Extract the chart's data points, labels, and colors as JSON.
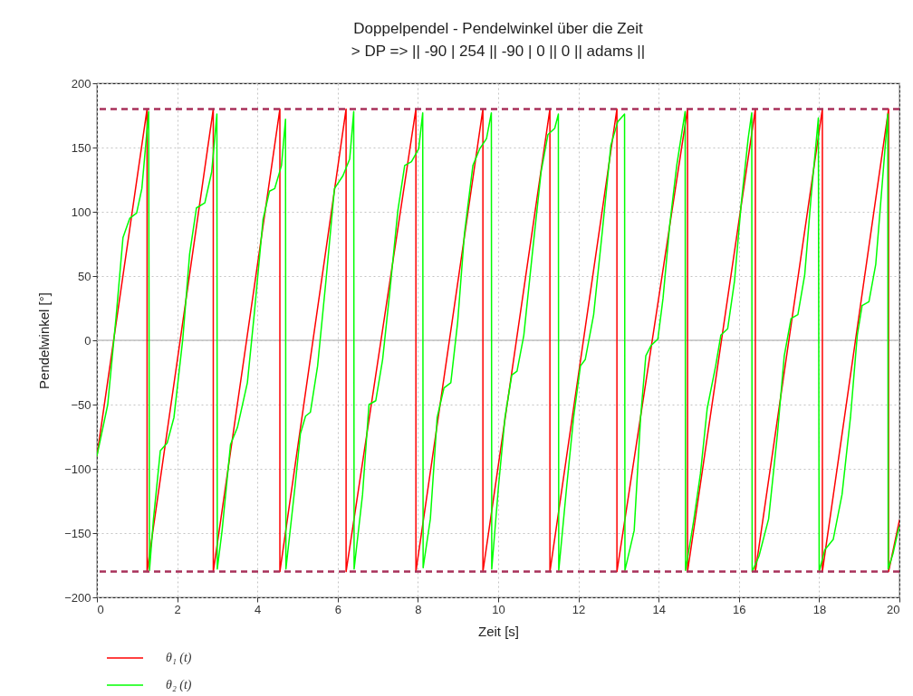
{
  "chart_data": {
    "type": "line",
    "title": "Doppelpendel - Pendelwinkel über die Zeit",
    "subtitle": "> DP => || -90 | 254 || -90 | 0 || 0 || adams ||",
    "xlabel": "Zeit [s]",
    "ylabel": "Pendelwinkel [°]",
    "xlim": [
      0,
      20
    ],
    "xticks": [
      0,
      2,
      4,
      6,
      8,
      10,
      12,
      14,
      16,
      18,
      20
    ],
    "ylim": [
      -200,
      200
    ],
    "yticks": [
      -200,
      -150,
      -100,
      -50,
      0,
      50,
      100,
      150,
      200
    ],
    "grid": true,
    "legend": "bottom left",
    "marker": "none",
    "line_style": "solid",
    "ref_lines": [
      {
        "axis": "y",
        "value": 0,
        "label": null,
        "color": "#c0c0c0",
        "line_style": "solid"
      },
      {
        "axis": "y",
        "value": 180,
        "label": null,
        "color": "#a8305a",
        "line_style": "dashed"
      },
      {
        "axis": "y",
        "value": -180,
        "label": null,
        "color": "#a8305a",
        "line_style": "dashed"
      }
    ],
    "series": [
      {
        "name": "θ₁ (t)",
        "color": "#ff0000",
        "x": [
          0,
          1.25,
          1.25,
          2.9,
          2.9,
          4.56,
          4.56,
          6.21,
          6.21,
          7.95,
          7.95,
          9.62,
          9.62,
          11.29,
          11.29,
          12.96,
          12.96,
          14.72,
          14.72,
          16.41,
          16.41,
          18.08,
          18.08,
          19.73,
          19.73,
          20
        ],
        "values": [
          -90,
          180,
          -180,
          180,
          -180,
          180,
          -180,
          180,
          -180,
          180,
          -180,
          180,
          -180,
          180,
          -180,
          180,
          -180,
          180,
          -180,
          180,
          -180,
          180,
          -180,
          180,
          -180,
          -140
        ]
      },
      {
        "name": "θ₂ (t)",
        "color": "#00ff00",
        "x": [
          0,
          0.27,
          0.48,
          0.65,
          0.82,
          0.99,
          1.12,
          1.29,
          1.31,
          1.41,
          1.58,
          1.75,
          1.92,
          2.14,
          2.31,
          2.48,
          2.69,
          2.86,
          2.99,
          3.0,
          3.12,
          3.33,
          3.5,
          3.75,
          3.92,
          4.14,
          4.3,
          4.43,
          4.6,
          4.7,
          4.71,
          4.94,
          5.07,
          5.2,
          5.32,
          5.5,
          5.71,
          5.92,
          6.13,
          6.3,
          6.4,
          6.41,
          6.62,
          6.78,
          6.95,
          7.12,
          7.29,
          7.5,
          7.67,
          7.84,
          8.02,
          8.12,
          8.13,
          8.31,
          8.48,
          8.65,
          8.82,
          8.99,
          9.16,
          9.37,
          9.54,
          9.71,
          9.83,
          9.84,
          10.01,
          10.17,
          10.34,
          10.47,
          10.64,
          10.85,
          11.07,
          11.24,
          11.41,
          11.5,
          11.51,
          11.71,
          11.88,
          12.05,
          12.17,
          12.38,
          12.6,
          12.81,
          12.98,
          13.15,
          13.16,
          13.39,
          13.55,
          13.68,
          13.81,
          13.98,
          14.11,
          14.28,
          14.45,
          14.66,
          14.67,
          14.87,
          15.04,
          15.21,
          15.42,
          15.55,
          15.72,
          15.89,
          16.06,
          16.23,
          16.32,
          16.33,
          16.5,
          16.74,
          16.96,
          17.13,
          17.3,
          17.47,
          17.64,
          17.8,
          17.98,
          18.0,
          18.14,
          18.35,
          18.57,
          18.78,
          18.95,
          19.07,
          19.24,
          19.41,
          19.58,
          19.71,
          19.72,
          19.84,
          19.97,
          20
        ],
        "values": [
          -90,
          -50,
          19,
          80,
          95,
          99,
          118,
          178,
          -179,
          -139,
          -86,
          -80,
          -60,
          1,
          67,
          103,
          107,
          131,
          176,
          -178,
          -148,
          -81,
          -68,
          -33,
          20,
          94,
          116,
          118,
          136,
          172,
          -178,
          -113,
          -73,
          -59,
          -56,
          -20,
          47,
          118,
          128,
          141,
          178,
          -178,
          -120,
          -50,
          -47,
          -15,
          35,
          101,
          136,
          139,
          149,
          177,
          -177,
          -139,
          -60,
          -37,
          -33,
          14,
          83,
          136,
          149,
          157,
          177,
          -178,
          -113,
          -60,
          -27,
          -24,
          4,
          67,
          131,
          160,
          165,
          176,
          -179,
          -113,
          -60,
          -20,
          -15,
          20,
          86,
          152,
          170,
          176,
          -179,
          -148,
          -60,
          -12,
          -4,
          1,
          33,
          91,
          136,
          178,
          -179,
          -141,
          -104,
          -53,
          -20,
          4,
          9,
          46,
          107,
          157,
          177,
          -180,
          -168,
          -139,
          -73,
          -12,
          17,
          20,
          51,
          112,
          173,
          -180,
          -163,
          -155,
          -120,
          -60,
          4,
          27,
          30,
          59,
          125,
          176,
          -178,
          -166,
          -148,
          -145
        ]
      }
    ]
  }
}
